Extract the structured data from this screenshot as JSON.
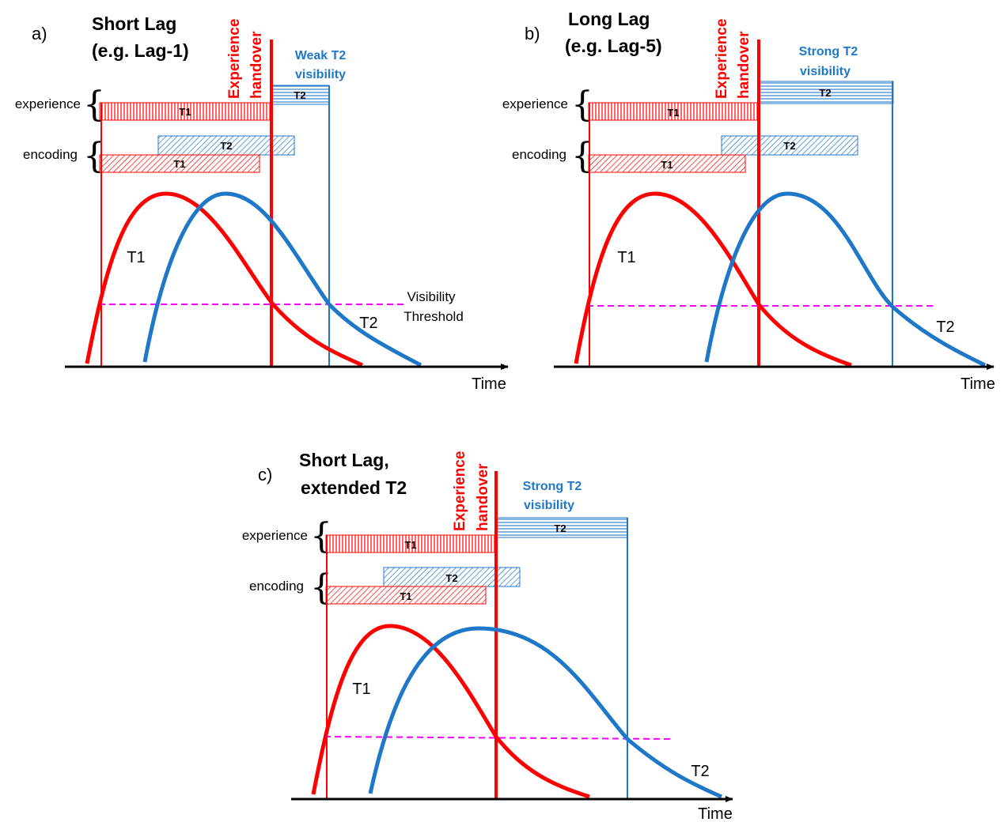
{
  "colors": {
    "t1": "#ff0000",
    "t2": "#1f77c8",
    "threshold": "#ff00ff",
    "axis": "#000000"
  },
  "labels": {
    "experience": "experience",
    "encoding": "encoding",
    "time": "Time",
    "handover_line1": "Experience",
    "handover_line2": "handover",
    "t1": "T1",
    "t2": "T2",
    "visibility_line1": "Visibility",
    "visibility_line2": "Threshold"
  },
  "panels": [
    {
      "letter": "a)",
      "heading_line1": "Short Lag",
      "heading_line2": "(e.g. Lag-1)",
      "t2_visibility_line1": "Weak T2",
      "t2_visibility_line2": "visibility",
      "shows_threshold_label": true
    },
    {
      "letter": "b)",
      "heading_line1": "Long Lag",
      "heading_line2": "(e.g. Lag-5)",
      "t2_visibility_line1": "Strong T2",
      "t2_visibility_line2": "visibility",
      "shows_threshold_label": false
    },
    {
      "letter": "c)",
      "heading_line1": "Short Lag,",
      "heading_line2": "extended T2",
      "t2_visibility_line1": "Strong T2",
      "t2_visibility_line2": "visibility",
      "shows_threshold_label": false
    }
  ]
}
